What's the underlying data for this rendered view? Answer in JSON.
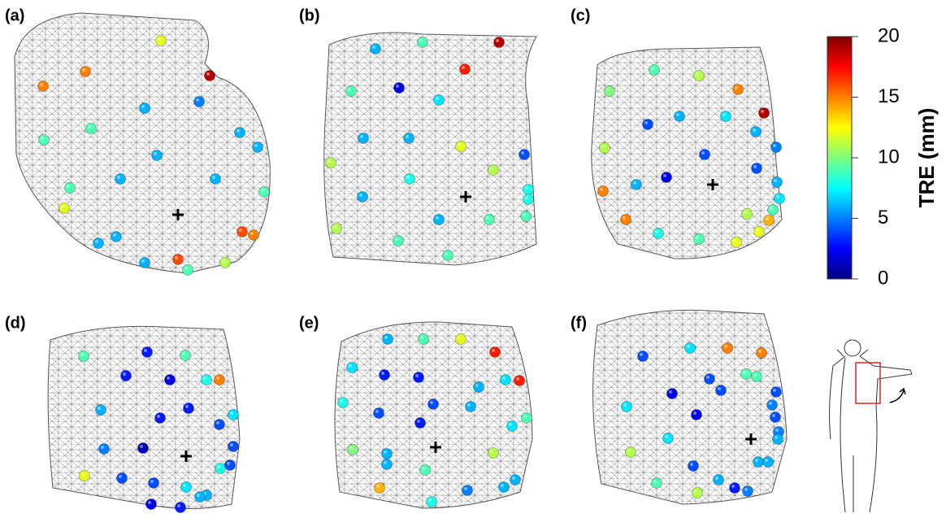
{
  "panels": [
    {
      "label": "(a)",
      "tre_values": [
        12,
        15,
        15,
        19,
        5,
        6,
        9,
        9,
        6,
        6,
        6,
        6,
        6,
        9,
        9,
        12,
        16,
        15,
        6,
        6,
        6,
        16,
        9,
        11
      ]
    },
    {
      "label": "(b)",
      "tre_values": [
        9,
        19,
        6,
        17,
        2,
        9,
        7,
        6,
        6,
        12,
        4,
        11,
        11,
        8,
        6,
        8,
        8,
        6,
        9,
        9,
        11,
        9,
        9
      ]
    },
    {
      "label": "(c)",
      "tre_values": [
        9,
        11,
        15,
        10,
        6,
        7,
        19,
        4,
        6,
        11,
        5,
        4,
        4,
        2,
        6,
        6,
        15,
        7,
        9,
        11,
        14,
        15,
        12,
        8,
        9,
        12
      ]
    },
    {
      "label": "(d)",
      "tre_values": [
        9,
        3,
        9,
        3,
        2,
        8,
        15,
        6,
        3,
        3,
        7,
        4,
        5,
        1,
        4,
        8,
        4,
        12,
        4,
        4,
        7,
        6,
        6,
        2,
        3
      ]
    },
    {
      "label": "(e)",
      "tre_values": [
        6,
        9,
        12,
        17,
        7,
        3,
        3,
        6,
        7,
        17,
        8,
        4,
        4,
        6,
        7,
        9,
        3,
        6,
        10,
        11,
        6,
        9,
        14,
        5,
        6,
        6,
        8
      ]
    },
    {
      "label": "(f)",
      "tre_values": [
        7,
        15,
        15,
        4,
        4,
        9,
        9,
        2,
        4,
        4,
        2,
        7,
        5,
        4,
        5,
        7,
        6,
        11,
        6,
        6,
        4,
        6,
        9,
        3,
        5,
        11
      ]
    }
  ],
  "colorbar": {
    "title": "TRE (mm)",
    "lim": [
      0,
      20
    ],
    "ticks": [
      0,
      5,
      10,
      15,
      20
    ]
  }
}
